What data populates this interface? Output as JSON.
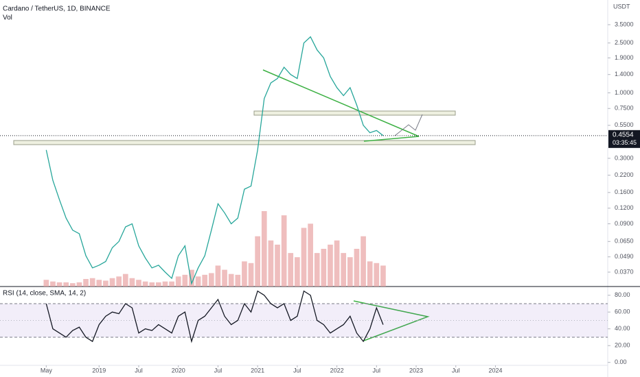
{
  "chart_data": [
    {
      "type": "line",
      "title": "Cardano / TetherUS, 1D, BINANCE",
      "y_axis_label": "USDT",
      "log_scale": true,
      "grid": false,
      "x": [
        "2018-05",
        "2018-06",
        "2018-07",
        "2018-08",
        "2018-09",
        "2018-10",
        "2018-11",
        "2018-12",
        "2019-01",
        "2019-02",
        "2019-03",
        "2019-04",
        "2019-05",
        "2019-06",
        "2019-07",
        "2019-08",
        "2019-09",
        "2019-10",
        "2019-11",
        "2019-12",
        "2020-01",
        "2020-02",
        "2020-03",
        "2020-04",
        "2020-05",
        "2020-06",
        "2020-07",
        "2020-08",
        "2020-09",
        "2020-10",
        "2020-11",
        "2020-12",
        "2021-01",
        "2021-02",
        "2021-03",
        "2021-04",
        "2021-05",
        "2021-06",
        "2021-07",
        "2021-08",
        "2021-09",
        "2021-10",
        "2021-11",
        "2021-12",
        "2022-01",
        "2022-02",
        "2022-03",
        "2022-04",
        "2022-05",
        "2022-06",
        "2022-07",
        "2022-08"
      ],
      "values": [
        0.35,
        0.2,
        0.14,
        0.1,
        0.08,
        0.075,
        0.05,
        0.04,
        0.042,
        0.045,
        0.058,
        0.065,
        0.085,
        0.09,
        0.06,
        0.048,
        0.04,
        0.042,
        0.037,
        0.033,
        0.05,
        0.06,
        0.03,
        0.04,
        0.05,
        0.08,
        0.13,
        0.11,
        0.09,
        0.1,
        0.17,
        0.18,
        0.35,
        0.9,
        1.2,
        1.3,
        1.6,
        1.4,
        1.3,
        2.5,
        2.8,
        2.2,
        1.9,
        1.35,
        1.1,
        0.95,
        1.1,
        0.8,
        0.55,
        0.48,
        0.5,
        0.4554
      ],
      "color": "#26a69a",
      "last_value": 0.4554,
      "countdown": "03:35:45",
      "volume": {
        "name": "Vol",
        "color": "#e8a3a3",
        "values": [
          8,
          6,
          5,
          5,
          4,
          5,
          9,
          10,
          8,
          7,
          10,
          12,
          15,
          10,
          8,
          6,
          5,
          5,
          6,
          6,
          12,
          14,
          20,
          12,
          14,
          16,
          25,
          20,
          15,
          14,
          30,
          28,
          60,
          90,
          55,
          50,
          85,
          40,
          35,
          70,
          75,
          40,
          45,
          50,
          55,
          40,
          35,
          45,
          60,
          30,
          28,
          25
        ]
      },
      "xlim": [
        "2017-10",
        "2025-06"
      ],
      "xticks": [
        {
          "value": "2018-05",
          "label": "May"
        },
        {
          "value": "2019-01",
          "label": "2019"
        },
        {
          "value": "2019-07",
          "label": "Jul"
        },
        {
          "value": "2020-01",
          "label": "2020"
        },
        {
          "value": "2020-07",
          "label": "Jul"
        },
        {
          "value": "2021-01",
          "label": "2021"
        },
        {
          "value": "2021-07",
          "label": "Jul"
        },
        {
          "value": "2022-01",
          "label": "2022"
        },
        {
          "value": "2022-07",
          "label": "Jul"
        },
        {
          "value": "2023-01",
          "label": "2023"
        },
        {
          "value": "2023-07",
          "label": "Jul"
        },
        {
          "value": "2024-01",
          "label": "2024"
        }
      ],
      "ylim": [
        0.0284,
        5.51
      ],
      "yticks": [
        {
          "value": 3.5,
          "label": "3.5000"
        },
        {
          "value": 2.5,
          "label": "2.5000"
        },
        {
          "value": 1.9,
          "label": "1.9000"
        },
        {
          "value": 1.4,
          "label": "1.4000"
        },
        {
          "value": 1,
          "label": "1.0000"
        },
        {
          "value": 0.75,
          "label": "0.7500"
        },
        {
          "value": 0.55,
          "label": "0.5500"
        },
        {
          "value": 0.3,
          "label": "0.3000"
        },
        {
          "value": 0.22,
          "label": "0.2200"
        },
        {
          "value": 0.16,
          "label": "0.1600"
        },
        {
          "value": 0.12,
          "label": "0.1200"
        },
        {
          "value": 0.09,
          "label": "0.0900"
        },
        {
          "value": 0.065,
          "label": "0.0650"
        },
        {
          "value": 0.049,
          "label": "0.0490"
        },
        {
          "value": 0.037,
          "label": "0.0370"
        }
      ]
    },
    {
      "type": "line",
      "title": "RSI (14, close, SMA, 14, 2)",
      "x": [
        "2018-05",
        "2018-06",
        "2018-07",
        "2018-08",
        "2018-09",
        "2018-10",
        "2018-11",
        "2018-12",
        "2019-01",
        "2019-02",
        "2019-03",
        "2019-04",
        "2019-05",
        "2019-06",
        "2019-07",
        "2019-08",
        "2019-09",
        "2019-10",
        "2019-11",
        "2019-12",
        "2020-01",
        "2020-02",
        "2020-03",
        "2020-04",
        "2020-05",
        "2020-06",
        "2020-07",
        "2020-08",
        "2020-09",
        "2020-10",
        "2020-11",
        "2020-12",
        "2021-01",
        "2021-02",
        "2021-03",
        "2021-04",
        "2021-05",
        "2021-06",
        "2021-07",
        "2021-08",
        "2021-09",
        "2021-10",
        "2021-11",
        "2021-12",
        "2022-01",
        "2022-02",
        "2022-03",
        "2022-04",
        "2022-05",
        "2022-06",
        "2022-07",
        "2022-08"
      ],
      "values": [
        70,
        40,
        35,
        30,
        38,
        42,
        30,
        25,
        45,
        55,
        60,
        58,
        70,
        65,
        35,
        40,
        38,
        45,
        40,
        35,
        55,
        60,
        25,
        50,
        55,
        65,
        75,
        55,
        45,
        50,
        70,
        60,
        85,
        80,
        70,
        65,
        70,
        50,
        55,
        85,
        80,
        50,
        45,
        35,
        40,
        45,
        55,
        35,
        25,
        40,
        65,
        45
      ],
      "color": "#131722",
      "bands": [
        30,
        70
      ],
      "midline": 50,
      "ylim": [
        -3.5,
        90.4
      ],
      "yticks": [
        {
          "value": 80,
          "label": "80.00"
        },
        {
          "value": 60,
          "label": "60.00"
        },
        {
          "value": 40,
          "label": "40.00"
        },
        {
          "value": 20,
          "label": "20.00"
        },
        {
          "value": 0,
          "label": "0.00"
        }
      ]
    }
  ]
}
